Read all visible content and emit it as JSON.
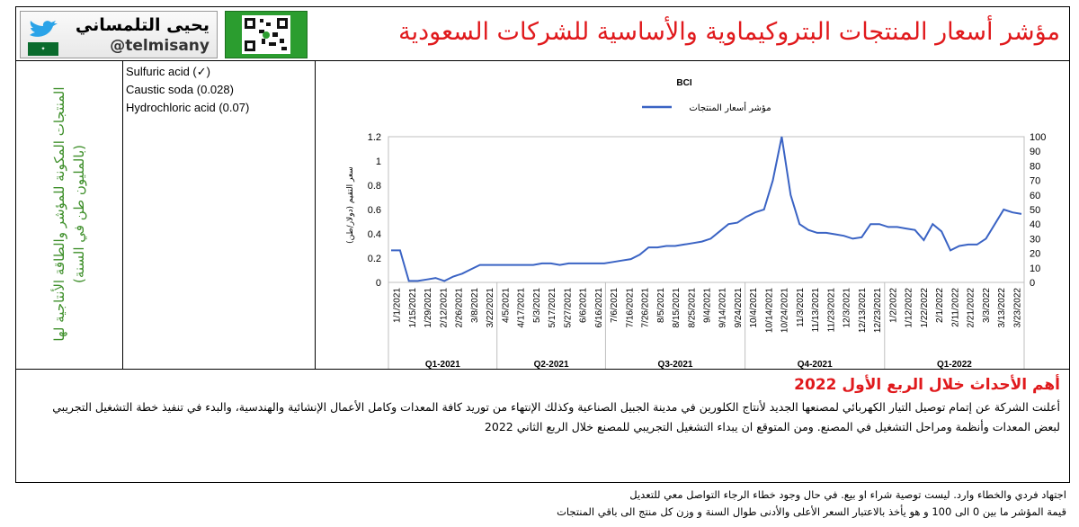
{
  "header": {
    "title": "مؤشر أسعار المنتجات البتروكيماوية والأساسية للشركات السعودية",
    "author_name": "يحيى التلمساني",
    "author_handle": "@telmisany"
  },
  "sidebar": {
    "label": "المنتجات المكونة للمؤشر والطاقة الأنتاجية لها (بالمليون طن في السنة)"
  },
  "products": [
    {
      "label": "Sulfuric acid (✓)"
    },
    {
      "label": "Caustic soda (0.028)"
    },
    {
      "label": "Hydrochloric acid (0.07)"
    }
  ],
  "chart_data": {
    "type": "line",
    "title": "BCI",
    "legend": "مؤشر أسعار المنتجات",
    "ylabel_left": "سعر التقيم (دولار/طن)",
    "ylim_left": [
      0,
      1.2
    ],
    "yticks_left": [
      "1.2",
      "1",
      "0.8",
      "0.6",
      "0.4",
      "0.2",
      "0"
    ],
    "ylim_right": [
      0,
      100
    ],
    "yticks_right": [
      "100",
      "90",
      "80",
      "70",
      "60",
      "50",
      "40",
      "30",
      "20",
      "10",
      "0"
    ],
    "xtick_labels": [
      "1/1/2021",
      "1/15/2021",
      "1/29/2021",
      "2/12/2021",
      "2/26/2021",
      "3/8/2021",
      "3/22/2021",
      "4/5/2021",
      "4/17/2021",
      "5/3/2021",
      "5/17/2021",
      "5/27/2021",
      "6/6/2021",
      "6/16/2021",
      "7/6/2021",
      "7/16/2021",
      "7/26/2021",
      "8/5/2021",
      "8/15/2021",
      "8/25/2021",
      "9/4/2021",
      "9/14/2021",
      "9/24/2021",
      "10/4/2021",
      "10/14/2021",
      "10/24/2021",
      "11/3/2021",
      "11/13/2021",
      "11/23/2021",
      "12/3/2021",
      "12/13/2021",
      "12/23/2021",
      "1/2/2022",
      "1/12/2022",
      "1/22/2022",
      "2/1/2022",
      "2/11/2022",
      "2/21/2022",
      "3/3/2022",
      "3/13/2022",
      "3/23/2022"
    ],
    "quarters": [
      "Q1-2021",
      "Q2-2021",
      "Q3-2021",
      "Q4-2021",
      "Q1-2022"
    ],
    "series": [
      {
        "name": "مؤشر أسعار المنتجات",
        "axis": "right",
        "values": [
          22,
          22,
          1,
          1,
          2,
          3,
          1,
          4,
          6,
          9,
          12,
          12,
          12,
          12,
          12,
          12,
          12,
          13,
          13,
          12,
          13,
          13,
          13,
          13,
          13,
          14,
          15,
          16,
          19,
          24,
          24,
          25,
          25,
          26,
          27,
          28,
          30,
          35,
          40,
          41,
          45,
          48,
          50,
          70,
          100,
          60,
          40,
          36,
          34,
          34,
          33,
          32,
          30,
          31,
          40,
          40,
          38,
          38,
          37,
          36,
          29,
          40,
          35,
          22,
          25,
          26,
          26,
          30,
          40,
          50,
          48,
          47
        ]
      }
    ]
  },
  "events": {
    "title": "أهم الأحداث خلال الربع الأول 2022",
    "body": "أعلنت الشركة عن إتمام توصيل التيار الكهربائي لمصنعها الجديد لأنتاج الكلورين في مدينة الجبيل الصناعية وكذلك الإنتهاء من توريد كافة المعدات وكامل الأعمال الإنشائية والهندسية، والبدء في تنفيذ خطة التشغيل التجريبي لبعض المعدات وأنظمة ومراحل التشغيل في المصنع. ومن المتوقع ان يبداء التشغيل التجريبي للمصنع خلال الربع الثاني 2022"
  },
  "footer": {
    "line1": "اجتهاد فردي والخطاء وارد. ليست توصية شراء او بيع. في حال وجود خطاء الرجاء التواصل معي للتعديل",
    "line2": "قيمة المؤشر ما بين 0 الى 100 و هو يأخذ بالاعتبار السعر الأعلى والأدنى طوال السنة و وزن كل منتج الى باقي المنتجات"
  }
}
